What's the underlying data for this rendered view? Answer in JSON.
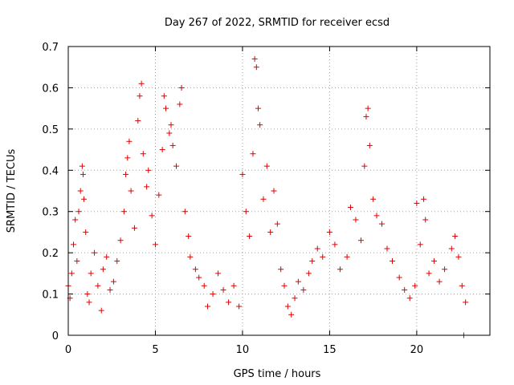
{
  "chart_data": {
    "type": "scatter",
    "title": "Day 267 of 2022, SRMTID for receiver ecsd",
    "xlabel": "GPS time / hours",
    "ylabel": "SRMTID / TECUs",
    "xlim": [
      0,
      24.2
    ],
    "ylim": [
      0,
      0.7
    ],
    "xticks": [
      0,
      5,
      10,
      15,
      20
    ],
    "yticks": [
      0,
      0.1,
      0.2,
      0.3,
      0.4,
      0.5,
      0.6,
      0.7
    ],
    "xtick_labels": [
      "0",
      "5",
      "10",
      "15",
      "20"
    ],
    "ytick_labels": [
      "0",
      "0.1",
      "0.2",
      "0.3",
      "0.4",
      "0.5",
      "0.6",
      "0.7"
    ],
    "grid": true,
    "marker": "plus",
    "color": "#e00000",
    "series": [
      {
        "name": "SRMTID",
        "points": [
          [
            0.0,
            0.12
          ],
          [
            0.1,
            0.09
          ],
          [
            0.2,
            0.15
          ],
          [
            0.3,
            0.22
          ],
          [
            0.4,
            0.28
          ],
          [
            0.5,
            0.18
          ],
          [
            0.6,
            0.3
          ],
          [
            0.7,
            0.35
          ],
          [
            0.8,
            0.41
          ],
          [
            0.85,
            0.39
          ],
          [
            0.9,
            0.33
          ],
          [
            1.0,
            0.25
          ],
          [
            1.1,
            0.1
          ],
          [
            1.2,
            0.08
          ],
          [
            1.3,
            0.15
          ],
          [
            1.5,
            0.2
          ],
          [
            1.7,
            0.12
          ],
          [
            1.9,
            0.06
          ],
          [
            2.0,
            0.16
          ],
          [
            2.2,
            0.19
          ],
          [
            2.4,
            0.11
          ],
          [
            2.6,
            0.13
          ],
          [
            2.8,
            0.18
          ],
          [
            3.0,
            0.23
          ],
          [
            3.2,
            0.3
          ],
          [
            3.3,
            0.39
          ],
          [
            3.4,
            0.43
          ],
          [
            3.5,
            0.47
          ],
          [
            3.6,
            0.35
          ],
          [
            3.8,
            0.26
          ],
          [
            4.0,
            0.52
          ],
          [
            4.1,
            0.58
          ],
          [
            4.2,
            0.61
          ],
          [
            4.3,
            0.44
          ],
          [
            4.5,
            0.36
          ],
          [
            4.6,
            0.4
          ],
          [
            4.8,
            0.29
          ],
          [
            5.0,
            0.22
          ],
          [
            5.2,
            0.34
          ],
          [
            5.4,
            0.45
          ],
          [
            5.5,
            0.58
          ],
          [
            5.6,
            0.55
          ],
          [
            5.8,
            0.49
          ],
          [
            5.9,
            0.51
          ],
          [
            6.0,
            0.46
          ],
          [
            6.2,
            0.41
          ],
          [
            6.4,
            0.56
          ],
          [
            6.5,
            0.6
          ],
          [
            6.7,
            0.3
          ],
          [
            6.9,
            0.24
          ],
          [
            7.0,
            0.19
          ],
          [
            7.3,
            0.16
          ],
          [
            7.5,
            0.14
          ],
          [
            7.8,
            0.12
          ],
          [
            8.0,
            0.07
          ],
          [
            8.3,
            0.1
          ],
          [
            8.6,
            0.15
          ],
          [
            8.9,
            0.11
          ],
          [
            9.2,
            0.08
          ],
          [
            9.5,
            0.12
          ],
          [
            9.8,
            0.07
          ],
          [
            10.0,
            0.39
          ],
          [
            10.2,
            0.3
          ],
          [
            10.4,
            0.24
          ],
          [
            10.6,
            0.44
          ],
          [
            10.7,
            0.67
          ],
          [
            10.8,
            0.65
          ],
          [
            10.9,
            0.55
          ],
          [
            11.0,
            0.51
          ],
          [
            11.2,
            0.33
          ],
          [
            11.4,
            0.41
          ],
          [
            11.6,
            0.25
          ],
          [
            11.8,
            0.35
          ],
          [
            12.0,
            0.27
          ],
          [
            12.2,
            0.16
          ],
          [
            12.4,
            0.12
          ],
          [
            12.6,
            0.07
          ],
          [
            12.8,
            0.05
          ],
          [
            13.0,
            0.09
          ],
          [
            13.2,
            0.13
          ],
          [
            13.5,
            0.11
          ],
          [
            13.8,
            0.15
          ],
          [
            14.0,
            0.18
          ],
          [
            14.3,
            0.21
          ],
          [
            14.6,
            0.19
          ],
          [
            15.0,
            0.25
          ],
          [
            15.3,
            0.22
          ],
          [
            15.6,
            0.16
          ],
          [
            16.0,
            0.19
          ],
          [
            16.2,
            0.31
          ],
          [
            16.5,
            0.28
          ],
          [
            16.8,
            0.23
          ],
          [
            17.0,
            0.41
          ],
          [
            17.1,
            0.53
          ],
          [
            17.2,
            0.55
          ],
          [
            17.3,
            0.46
          ],
          [
            17.5,
            0.33
          ],
          [
            17.7,
            0.29
          ],
          [
            18.0,
            0.27
          ],
          [
            18.3,
            0.21
          ],
          [
            18.6,
            0.18
          ],
          [
            19.0,
            0.14
          ],
          [
            19.3,
            0.11
          ],
          [
            19.6,
            0.09
          ],
          [
            19.9,
            0.12
          ],
          [
            20.0,
            0.32
          ],
          [
            20.2,
            0.22
          ],
          [
            20.4,
            0.33
          ],
          [
            20.5,
            0.28
          ],
          [
            20.7,
            0.15
          ],
          [
            21.0,
            0.18
          ],
          [
            21.3,
            0.13
          ],
          [
            21.6,
            0.16
          ],
          [
            22.0,
            0.21
          ],
          [
            22.2,
            0.24
          ],
          [
            22.4,
            0.19
          ],
          [
            22.6,
            0.12
          ],
          [
            22.7,
            0.0
          ],
          [
            22.8,
            0.08
          ]
        ]
      }
    ]
  }
}
